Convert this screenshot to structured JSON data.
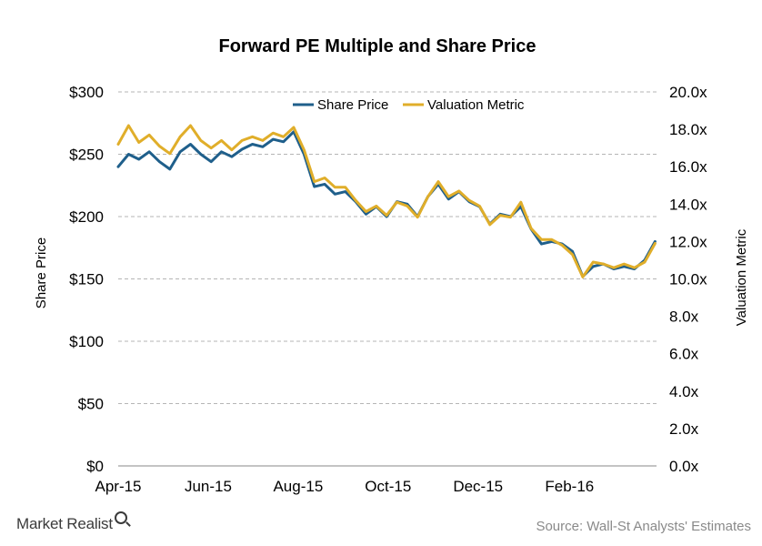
{
  "footer": {
    "brand": "Market Realist",
    "source": "Source: Wall-St Analysts' Estimates"
  },
  "chart_data": {
    "type": "line",
    "title": "Forward PE Multiple  and Share Price",
    "ylabel": "Share Price",
    "y2label": "Valuation Metric",
    "ylim": [
      0,
      300
    ],
    "y2lim": [
      0,
      20
    ],
    "yticks": [
      "$0",
      "$50",
      "$100",
      "$150",
      "$200",
      "$250",
      "$300"
    ],
    "y2ticks": [
      "0.0x",
      "2.0x",
      "4.0x",
      "6.0x",
      "8.0x",
      "10.0x",
      "12.0x",
      "14.0x",
      "16.0x",
      "18.0x",
      "20.0x"
    ],
    "xticks": [
      "Apr-15",
      "Jun-15",
      "Aug-15",
      "Oct-15",
      "Dec-15",
      "Feb-16"
    ],
    "grid": true,
    "legend_position": "top-center",
    "colors": {
      "share_price": "#1f5f8b",
      "valuation_metric": "#e0ae2a",
      "grid": "#b5b5b5"
    },
    "x": [
      "2015-04-01",
      "2015-04-08",
      "2015-04-15",
      "2015-04-22",
      "2015-04-29",
      "2015-05-06",
      "2015-05-13",
      "2015-05-20",
      "2015-05-27",
      "2015-06-03",
      "2015-06-10",
      "2015-06-17",
      "2015-06-24",
      "2015-07-01",
      "2015-07-08",
      "2015-07-15",
      "2015-07-22",
      "2015-07-29",
      "2015-08-05",
      "2015-08-12",
      "2015-08-19",
      "2015-08-26",
      "2015-09-02",
      "2015-09-09",
      "2015-09-16",
      "2015-09-23",
      "2015-09-30",
      "2015-10-07",
      "2015-10-14",
      "2015-10-21",
      "2015-10-28",
      "2015-11-04",
      "2015-11-11",
      "2015-11-18",
      "2015-11-25",
      "2015-12-02",
      "2015-12-09",
      "2015-12-16",
      "2015-12-23",
      "2015-12-30",
      "2016-01-06",
      "2016-01-13",
      "2016-01-20",
      "2016-01-27",
      "2016-02-03",
      "2016-02-10",
      "2016-02-17",
      "2016-02-24",
      "2016-03-02",
      "2016-03-09",
      "2016-03-16",
      "2016-03-23",
      "2016-03-30"
    ],
    "series": [
      {
        "name": "Share Price",
        "axis": "left",
        "values": [
          240,
          250,
          246,
          252,
          244,
          238,
          252,
          258,
          250,
          244,
          252,
          248,
          254,
          258,
          256,
          262,
          260,
          268,
          250,
          224,
          226,
          218,
          220,
          212,
          202,
          208,
          200,
          212,
          210,
          200,
          216,
          226,
          214,
          220,
          212,
          208,
          194,
          202,
          200,
          208,
          190,
          178,
          180,
          178,
          172,
          152,
          160,
          162,
          158,
          160,
          158,
          165,
          180
        ]
      },
      {
        "name": "Valuation Metric",
        "axis": "right",
        "values": [
          17.2,
          18.2,
          17.3,
          17.7,
          17.1,
          16.7,
          17.6,
          18.2,
          17.4,
          17.0,
          17.4,
          16.9,
          17.4,
          17.6,
          17.4,
          17.8,
          17.6,
          18.1,
          16.9,
          15.2,
          15.4,
          14.9,
          14.9,
          14.2,
          13.6,
          13.9,
          13.4,
          14.1,
          13.9,
          13.3,
          14.4,
          15.2,
          14.4,
          14.7,
          14.2,
          13.9,
          12.9,
          13.4,
          13.3,
          14.1,
          12.7,
          12.1,
          12.1,
          11.8,
          11.3,
          10.1,
          10.9,
          10.8,
          10.6,
          10.8,
          10.6,
          10.9,
          11.9
        ]
      }
    ]
  }
}
